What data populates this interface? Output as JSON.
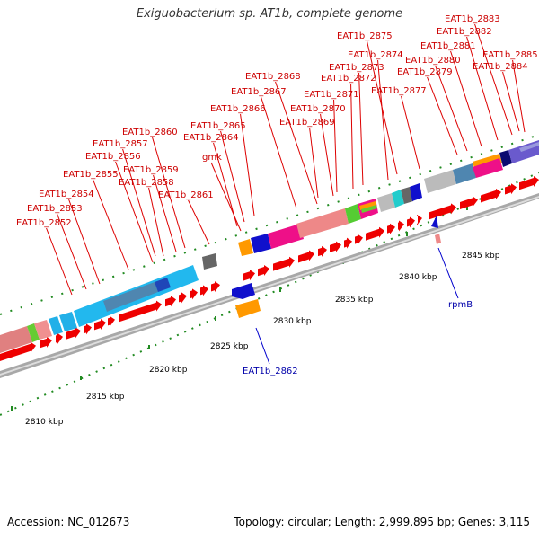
{
  "title": "Exiguobacterium sp. AT1b, complete genome",
  "footer": {
    "accession": "Accession: NC_012673",
    "summary": "Topology: circular; Length: 2,999,895 bp; Genes: 3,115"
  },
  "colors": {
    "gene_label": "#cc0000",
    "rna_label": "#0000aa",
    "tick": "#228b22",
    "backbone": "#999999",
    "cds_arrow": "#ee0000"
  },
  "scale_labels": [
    "2810 kbp",
    "2815 kbp",
    "2820 kbp",
    "2825 kbp",
    "2830 kbp",
    "2835 kbp",
    "2840 kbp",
    "2845 kbp"
  ],
  "gene_labels": [
    "EAT1b_2852",
    "EAT1b_2853",
    "EAT1b_2854",
    "EAT1b_2855",
    "EAT1b_2856",
    "EAT1b_2857",
    "EAT1b_2858",
    "EAT1b_2859",
    "EAT1b_2860",
    "EAT1b_2861",
    "gmk",
    "EAT1b_2864",
    "EAT1b_2865",
    "EAT1b_2866",
    "EAT1b_2867",
    "EAT1b_2868",
    "EAT1b_2869",
    "EAT1b_2870",
    "EAT1b_2871",
    "EAT1b_2872",
    "EAT1b_2873",
    "EAT1b_2874",
    "EAT1b_2875",
    "EAT1b_2877",
    "EAT1b_2879",
    "EAT1b_2880",
    "EAT1b_2881",
    "EAT1b_2882",
    "EAT1b_2883",
    "EAT1b_2884",
    "EAT1b_2885"
  ],
  "rna_labels": [
    "EAT1b_2862",
    "rpmB"
  ]
}
